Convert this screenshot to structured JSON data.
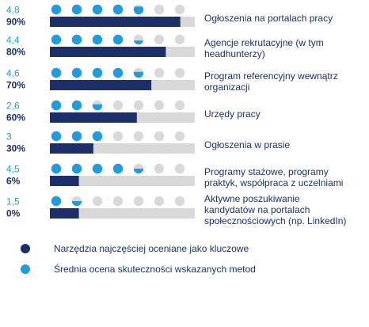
{
  "chart_data": {
    "type": "bar",
    "rating_max": 7,
    "categories": [
      {
        "lines": [
          "Ogłoszenia na portalach pracy"
        ],
        "percent_label": "90%",
        "percent": 90,
        "rating_label": "4,8",
        "rating": 4.8
      },
      {
        "lines": [
          "Agencje rekrutacyjne (w tym",
          "headhunterzy)"
        ],
        "percent_label": "80%",
        "percent": 80,
        "rating_label": "4,4",
        "rating": 4.4
      },
      {
        "lines": [
          "Program referencyjny wewnątrz",
          "organizacji"
        ],
        "percent_label": "70%",
        "percent": 70,
        "rating_label": "4,6",
        "rating": 4.6
      },
      {
        "lines": [
          "Urzędy pracy"
        ],
        "percent_label": "60%",
        "percent": 60,
        "rating_label": "2,6",
        "rating": 2.6
      },
      {
        "lines": [
          "Ogłoszenia w prasie"
        ],
        "percent_label": "30%",
        "percent": 30,
        "rating_label": "3",
        "rating": 3
      },
      {
        "lines": [
          "Programy stażowe, programy",
          "praktyk, współpraca z uczelniami"
        ],
        "percent_label": "6%",
        "percent": 6,
        "rating_label": "4,5",
        "rating": 4.5
      },
      {
        "lines": [
          "Aktywne poszukiwanie",
          "kandydatów na portalach",
          "społecznościowych (np. LinkedIn)"
        ],
        "percent_label": "0%",
        "percent": 0,
        "rating_label": "1,5",
        "rating": 1.5
      }
    ],
    "legend": [
      {
        "label": "Narzędzia najczęściej oceniane jako kluczowe",
        "color": "#1b2f6b"
      },
      {
        "label": "Średnia ocena skuteczności wskazanych metod",
        "color": "#1e9ce0"
      }
    ],
    "colors": {
      "bar": "#1b2f6b",
      "track": "#d9d9d9",
      "dot": "#1e9ce0",
      "dot_empty": "#d9d9d9"
    }
  }
}
